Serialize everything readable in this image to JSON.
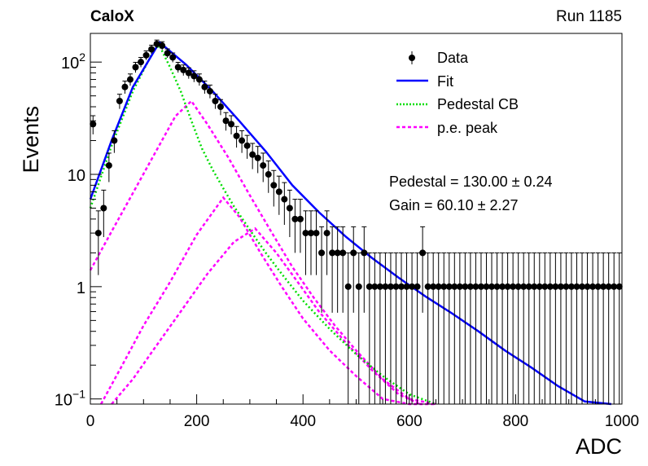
{
  "header": {
    "left": "CaloX",
    "right": "Run 1185"
  },
  "fit_text": {
    "pedestal": "Pedestal = 130.00 ± 0.24",
    "gain": "Gain = 60.10 ± 2.27"
  },
  "colors": {
    "data": "#000000",
    "fit": "#0000ff",
    "pedestal": "#00dd00",
    "pe": "#ff00ff"
  },
  "chart_data": {
    "type": "scatter",
    "xlabel": "ADC",
    "ylabel": "Events",
    "xlim": [
      0,
      1000
    ],
    "ylim": [
      0.09,
      180
    ],
    "yscale": "log",
    "x_ticks": [
      "0",
      "200",
      "400",
      "600",
      "800",
      "1000"
    ],
    "y_ticks": [
      {
        "label": "10",
        "sup": "−1",
        "value": 0.1
      },
      {
        "label": "1",
        "sup": "",
        "value": 1
      },
      {
        "label": "10",
        "sup": "",
        "value": 10
      },
      {
        "label": "10",
        "sup": "2",
        "value": 100
      }
    ],
    "legend": [
      {
        "label": "Data",
        "style": "marker"
      },
      {
        "label": "Fit",
        "style": "line"
      },
      {
        "label": "Pedestal CB",
        "style": "dotted"
      },
      {
        "label": "p.e. peak",
        "style": "dashed"
      }
    ],
    "data": {
      "x": [
        5,
        15,
        25,
        35,
        45,
        55,
        65,
        75,
        85,
        95,
        105,
        115,
        125,
        135,
        145,
        155,
        165,
        175,
        185,
        195,
        205,
        215,
        225,
        235,
        245,
        255,
        265,
        275,
        285,
        295,
        305,
        315,
        325,
        335,
        345,
        355,
        365,
        375,
        385,
        395,
        405,
        415,
        425,
        435,
        445,
        455,
        465,
        475,
        485,
        495,
        505,
        515,
        525,
        535,
        545,
        555,
        565,
        575,
        585,
        595,
        605,
        615,
        625,
        635,
        645,
        655,
        665,
        675,
        685,
        695,
        705,
        715,
        725,
        735,
        745,
        755,
        765,
        775,
        785,
        795,
        805,
        815,
        825,
        835,
        845,
        855,
        865,
        875,
        885,
        895,
        905,
        915,
        925,
        935,
        945,
        955,
        965,
        975,
        985,
        995
      ],
      "y": [
        28,
        3,
        5,
        12,
        20,
        45,
        60,
        70,
        90,
        100,
        115,
        130,
        145,
        140,
        120,
        110,
        90,
        85,
        80,
        75,
        70,
        60,
        55,
        45,
        40,
        30,
        28,
        22,
        20,
        18,
        15,
        14,
        12,
        10,
        8,
        7,
        6,
        5,
        4,
        4,
        3,
        3,
        3,
        2,
        3,
        2,
        2,
        2,
        1,
        2,
        1,
        2,
        1,
        1,
        1,
        1,
        1,
        1,
        1,
        1,
        1,
        1,
        2,
        1,
        1,
        1,
        1,
        1,
        1,
        1,
        1,
        1,
        1,
        1,
        1,
        1,
        1,
        1,
        1,
        1,
        1,
        1,
        1,
        1,
        1,
        1,
        1,
        1,
        1,
        1,
        1,
        1,
        1,
        1,
        1,
        1,
        1,
        1,
        1,
        1
      ]
    },
    "fit": {
      "x": [
        0,
        40,
        80,
        130,
        180,
        230,
        280,
        330,
        380,
        430,
        480,
        530,
        580,
        630,
        680,
        730,
        780,
        830,
        880,
        930,
        980
      ],
      "y": [
        6,
        20,
        60,
        150,
        95,
        55,
        30,
        16,
        8,
        4.6,
        2.8,
        1.8,
        1.2,
        0.82,
        0.58,
        0.4,
        0.27,
        0.19,
        0.13,
        0.095,
        0.08
      ]
    },
    "pedestal_cb": {
      "x": [
        0,
        40,
        80,
        120,
        130,
        150,
        170,
        190,
        210,
        230,
        250,
        270,
        300,
        330,
        360,
        400,
        450,
        500,
        550,
        600,
        650
      ],
      "y": [
        5,
        18,
        55,
        130,
        140,
        90,
        55,
        30,
        17,
        11,
        7.5,
        5.2,
        3.2,
        2,
        1.3,
        0.75,
        0.42,
        0.25,
        0.16,
        0.11,
        0.08
      ]
    },
    "pe_peaks": [
      {
        "x": [
          0,
          40,
          80,
          120,
          160,
          190,
          220,
          260,
          300,
          340,
          380,
          420,
          460,
          500,
          550,
          600,
          650
        ],
        "y": [
          1.4,
          3.1,
          6.8,
          15,
          33,
          45,
          28,
          14,
          6.5,
          3.1,
          1.5,
          0.8,
          0.45,
          0.27,
          0.15,
          0.1,
          0.08
        ]
      },
      {
        "x": [
          20,
          60,
          100,
          150,
          200,
          250,
          280,
          320,
          360,
          400,
          450,
          500,
          550,
          600,
          650
        ],
        "y": [
          0.09,
          0.2,
          0.45,
          1.1,
          2.9,
          6.2,
          4.2,
          2,
          1,
          0.52,
          0.27,
          0.16,
          0.1,
          0.08,
          0.06
        ]
      },
      {
        "x": [
          40,
          80,
          120,
          170,
          220,
          270,
          310,
          350,
          390,
          430,
          480,
          530,
          580,
          620
        ],
        "y": [
          0.08,
          0.15,
          0.28,
          0.6,
          1.3,
          2.5,
          3.3,
          2,
          1.1,
          0.6,
          0.32,
          0.18,
          0.11,
          0.08
        ]
      }
    ]
  }
}
